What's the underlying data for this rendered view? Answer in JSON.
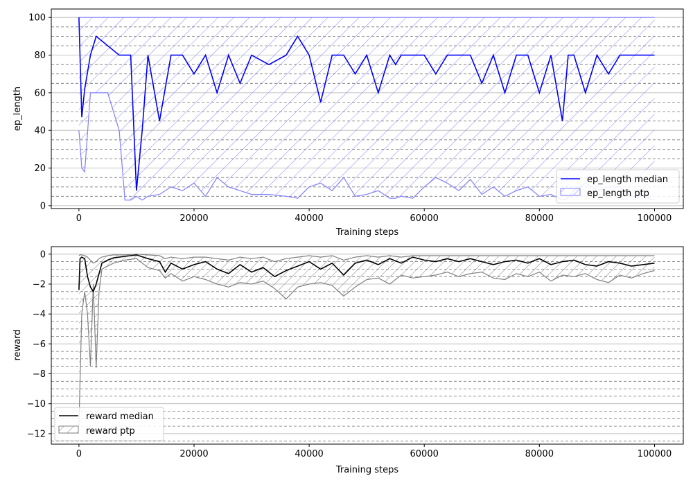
{
  "chart_data": [
    {
      "type": "line",
      "xlabel": "Training steps",
      "ylabel": "ep_length",
      "xlim": [
        -4800,
        105000
      ],
      "ylim": [
        -1.5,
        104.5
      ],
      "xticks": [
        0,
        20000,
        40000,
        60000,
        80000,
        100000
      ],
      "yticks": [
        0,
        20,
        40,
        60,
        80,
        100
      ],
      "grid": {
        "major": "solid",
        "minor": "dashed",
        "axis": "y"
      },
      "legend": {
        "placement": "lower-right",
        "entries": [
          "ep_length median",
          "ep_length ptp"
        ]
      },
      "series": [
        {
          "name": "ep_length median",
          "kind": "line",
          "color": "#0000ff",
          "x": [
            0,
            500,
            1000,
            2000,
            3000,
            5000,
            7000,
            9000,
            10000,
            11000,
            12000,
            14000,
            16000,
            18000,
            20000,
            22000,
            24000,
            26000,
            28000,
            30000,
            33000,
            36000,
            38000,
            40000,
            42000,
            44000,
            46000,
            48000,
            50000,
            52000,
            54000,
            55000,
            56000,
            58000,
            60000,
            62000,
            64000,
            66000,
            68000,
            70000,
            72000,
            74000,
            76000,
            78000,
            80000,
            82000,
            84000,
            85000,
            86000,
            88000,
            90000,
            92000,
            94000,
            96000,
            98000,
            100000
          ],
          "values": [
            100,
            47,
            62,
            80,
            90,
            85,
            80,
            80,
            8,
            40,
            80,
            45,
            80,
            80,
            70,
            80,
            60,
            80,
            65,
            80,
            75,
            80,
            90,
            80,
            55,
            80,
            80,
            70,
            80,
            60,
            80,
            75,
            80,
            80,
            80,
            70,
            80,
            80,
            80,
            65,
            80,
            60,
            80,
            80,
            60,
            80,
            45,
            80,
            80,
            60,
            80,
            70,
            80,
            80,
            80,
            80
          ]
        },
        {
          "name": "ep_length ptp",
          "kind": "band",
          "color": "#0000ff",
          "x": [
            0,
            500,
            1000,
            2000,
            3000,
            5000,
            7000,
            8000,
            9000,
            10000,
            11000,
            12000,
            14000,
            16000,
            18000,
            20000,
            22000,
            24000,
            26000,
            28000,
            30000,
            33000,
            36000,
            38000,
            40000,
            42000,
            44000,
            46000,
            48000,
            50000,
            52000,
            54000,
            55000,
            56000,
            58000,
            60000,
            62000,
            64000,
            66000,
            68000,
            70000,
            72000,
            74000,
            76000,
            78000,
            80000,
            82000,
            84000,
            85000,
            86000,
            88000,
            90000,
            92000,
            94000,
            96000,
            98000,
            100000
          ],
          "upper": [
            100,
            100,
            100,
            100,
            100,
            100,
            100,
            100,
            100,
            100,
            100,
            100,
            100,
            100,
            100,
            100,
            100,
            100,
            100,
            100,
            100,
            100,
            100,
            100,
            100,
            100,
            100,
            100,
            100,
            100,
            100,
            100,
            100,
            100,
            100,
            100,
            100,
            100,
            100,
            100,
            100,
            100,
            100,
            100,
            100,
            100,
            100,
            100,
            100,
            100,
            100,
            100,
            100,
            100,
            100,
            100,
            100
          ],
          "lower": [
            40,
            20,
            18,
            60,
            60,
            60,
            40,
            3,
            3,
            5,
            3,
            5,
            6,
            10,
            8,
            12,
            5,
            15,
            10,
            8,
            6,
            6,
            5,
            4,
            10,
            12,
            8,
            15,
            5,
            6,
            8,
            4,
            4,
            5,
            4,
            10,
            15,
            12,
            8,
            14,
            6,
            10,
            5,
            8,
            10,
            5,
            6,
            3,
            4,
            8,
            12,
            8,
            10,
            10,
            5,
            5,
            3
          ]
        }
      ]
    },
    {
      "type": "line",
      "xlabel": "Training steps",
      "ylabel": "reward",
      "xlim": [
        -4800,
        105000
      ],
      "ylim": [
        -12.7,
        0.5
      ],
      "xticks": [
        0,
        20000,
        40000,
        60000,
        80000,
        100000
      ],
      "yticks": [
        0,
        -2,
        -4,
        -6,
        -8,
        -10,
        -12
      ],
      "grid": {
        "major": "solid",
        "minor": "dashed",
        "axis": "y"
      },
      "legend": {
        "placement": "lower-left",
        "entries": [
          "reward median",
          "reward ptp"
        ]
      },
      "series": [
        {
          "name": "reward median",
          "kind": "line",
          "color": "#000000",
          "x": [
            0,
            200,
            500,
            1000,
            1500,
            2000,
            2500,
            3000,
            4000,
            5000,
            6000,
            8000,
            10000,
            12000,
            14000,
            15000,
            16000,
            18000,
            20000,
            22000,
            24000,
            26000,
            28000,
            30000,
            32000,
            34000,
            36000,
            38000,
            40000,
            42000,
            44000,
            46000,
            48000,
            50000,
            52000,
            54000,
            56000,
            58000,
            60000,
            62000,
            64000,
            66000,
            68000,
            70000,
            72000,
            74000,
            76000,
            78000,
            80000,
            82000,
            84000,
            86000,
            88000,
            90000,
            92000,
            94000,
            96000,
            98000,
            100000
          ],
          "values": [
            -2.4,
            -0.3,
            -0.2,
            -0.3,
            -1.5,
            -2.2,
            -2.5,
            -2.0,
            -0.6,
            -0.4,
            -0.25,
            -0.15,
            -0.05,
            -0.3,
            -0.5,
            -1.2,
            -0.6,
            -1.0,
            -0.7,
            -0.5,
            -1.0,
            -1.3,
            -0.7,
            -1.2,
            -0.9,
            -1.5,
            -1.1,
            -0.8,
            -0.5,
            -1.0,
            -0.6,
            -1.4,
            -0.6,
            -0.4,
            -0.7,
            -0.3,
            -0.6,
            -0.2,
            -0.4,
            -0.5,
            -0.3,
            -0.5,
            -0.3,
            -0.5,
            -0.7,
            -0.5,
            -0.4,
            -0.6,
            -0.3,
            -0.7,
            -0.5,
            -0.4,
            -0.7,
            -0.8,
            -0.5,
            -0.6,
            -0.8,
            -0.7,
            -0.6
          ]
        },
        {
          "name": "reward ptp",
          "kind": "band",
          "color": "#808080",
          "x": [
            0,
            200,
            500,
            1000,
            1500,
            2000,
            2500,
            3000,
            3500,
            4000,
            5000,
            6000,
            8000,
            10000,
            12000,
            14000,
            15000,
            16000,
            18000,
            20000,
            22000,
            24000,
            26000,
            28000,
            30000,
            32000,
            34000,
            36000,
            38000,
            40000,
            42000,
            44000,
            46000,
            48000,
            50000,
            52000,
            54000,
            56000,
            58000,
            60000,
            62000,
            64000,
            66000,
            68000,
            70000,
            72000,
            74000,
            76000,
            78000,
            80000,
            82000,
            84000,
            86000,
            88000,
            90000,
            92000,
            94000,
            96000,
            98000,
            100000
          ],
          "upper": [
            -0.1,
            -0.05,
            -0.05,
            -0.1,
            -0.2,
            -0.4,
            -0.6,
            -0.5,
            -0.3,
            -0.2,
            -0.1,
            -0.05,
            -0.05,
            0,
            -0.05,
            -0.1,
            -0.3,
            -0.2,
            -0.3,
            -0.2,
            -0.2,
            -0.3,
            -0.4,
            -0.2,
            -0.3,
            -0.2,
            -0.5,
            -0.3,
            -0.2,
            -0.1,
            -0.2,
            -0.1,
            -0.4,
            -0.2,
            -0.1,
            -0.2,
            -0.1,
            -0.2,
            -0.1,
            -0.1,
            -0.1,
            -0.1,
            -0.1,
            -0.1,
            -0.1,
            -0.1,
            -0.1,
            -0.1,
            -0.1,
            -0.1,
            -0.1,
            -0.1,
            -0.1,
            -0.1,
            -0.1,
            -0.1,
            -0.1,
            -0.1,
            -0.1,
            -0.1
          ],
          "lower": [
            -11.5,
            -8.5,
            -4.0,
            -2.5,
            -4.0,
            -7.5,
            -2.0,
            -7.6,
            -2.5,
            -1.0,
            -0.8,
            -0.6,
            -0.4,
            -0.3,
            -0.9,
            -1.1,
            -1.6,
            -1.3,
            -1.8,
            -1.5,
            -1.7,
            -2.0,
            -2.2,
            -1.9,
            -2.0,
            -1.8,
            -2.3,
            -3.0,
            -2.2,
            -2.0,
            -1.9,
            -2.1,
            -2.8,
            -2.2,
            -1.7,
            -1.6,
            -2.0,
            -1.4,
            -1.6,
            -1.5,
            -1.4,
            -1.2,
            -1.5,
            -1.3,
            -1.2,
            -1.6,
            -1.7,
            -1.3,
            -1.5,
            -1.2,
            -1.8,
            -1.4,
            -1.5,
            -1.3,
            -1.7,
            -1.9,
            -1.4,
            -1.6,
            -1.3,
            -1.1
          ]
        }
      ]
    }
  ]
}
